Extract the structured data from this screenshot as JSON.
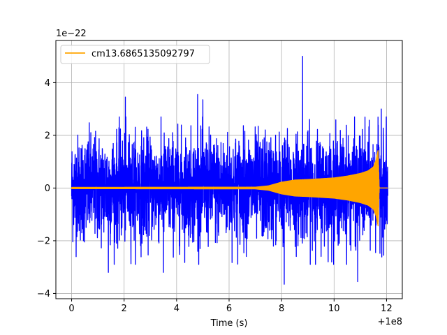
{
  "chart_data": {
    "type": "line",
    "title": "",
    "xlabel": "Time (s)",
    "ylabel": "",
    "x_offset_text": "+1e8",
    "y_scale_text": "1e−22",
    "xlim": [
      -0.6,
      12.6
    ],
    "ylim": [
      -4.2,
      5.6
    ],
    "x_ticks": [
      0,
      2,
      4,
      6,
      8,
      10,
      12
    ],
    "x_tick_labels": [
      "0",
      "2",
      "4",
      "6",
      "8",
      "10",
      "12"
    ],
    "y_ticks": [
      -4,
      -2,
      0,
      2,
      4
    ],
    "y_tick_labels": [
      "−4",
      "−2",
      "0",
      "2",
      "4"
    ],
    "grid": true,
    "legend": {
      "placement": "top-left",
      "entries": [
        "cm13.6865135092797"
      ]
    },
    "series": [
      {
        "label": "",
        "color": "#0000ff",
        "kind": "noise strain",
        "x_range": [
          0,
          12.05
        ],
        "typical_amplitude": 1.6,
        "extremes": [
          {
            "x": 2.05,
            "y": 3.45
          },
          {
            "x": 4.8,
            "y": 3.55
          },
          {
            "x": 5.0,
            "y": 3.35
          },
          {
            "x": 8.8,
            "y": 5.0
          },
          {
            "x": 11.8,
            "y": 3.0
          },
          {
            "x": 1.4,
            "y": -3.2
          },
          {
            "x": 3.5,
            "y": -3.2
          },
          {
            "x": 8.1,
            "y": -3.65
          },
          {
            "x": 10.9,
            "y": -3.55
          }
        ]
      },
      {
        "name": "cm13.6865135092797",
        "color": "#ffa500",
        "kind": "inspiral chirp",
        "envelope": [
          {
            "x": 0,
            "y": 0.02
          },
          {
            "x": 7.0,
            "y": 0.03
          },
          {
            "x": 7.5,
            "y": 0.08
          },
          {
            "x": 8.0,
            "y": 0.22
          },
          {
            "x": 8.5,
            "y": 0.3
          },
          {
            "x": 9.0,
            "y": 0.32
          },
          {
            "x": 10.0,
            "y": 0.38
          },
          {
            "x": 10.5,
            "y": 0.45
          },
          {
            "x": 11.0,
            "y": 0.55
          },
          {
            "x": 11.3,
            "y": 0.65
          },
          {
            "x": 11.5,
            "y": 0.8
          },
          {
            "x": 11.6,
            "y": 1.05
          },
          {
            "x": 11.68,
            "y": 1.45
          },
          {
            "x": 11.72,
            "y": 0.0
          },
          {
            "x": 12.05,
            "y": 0.0
          }
        ]
      }
    ]
  }
}
